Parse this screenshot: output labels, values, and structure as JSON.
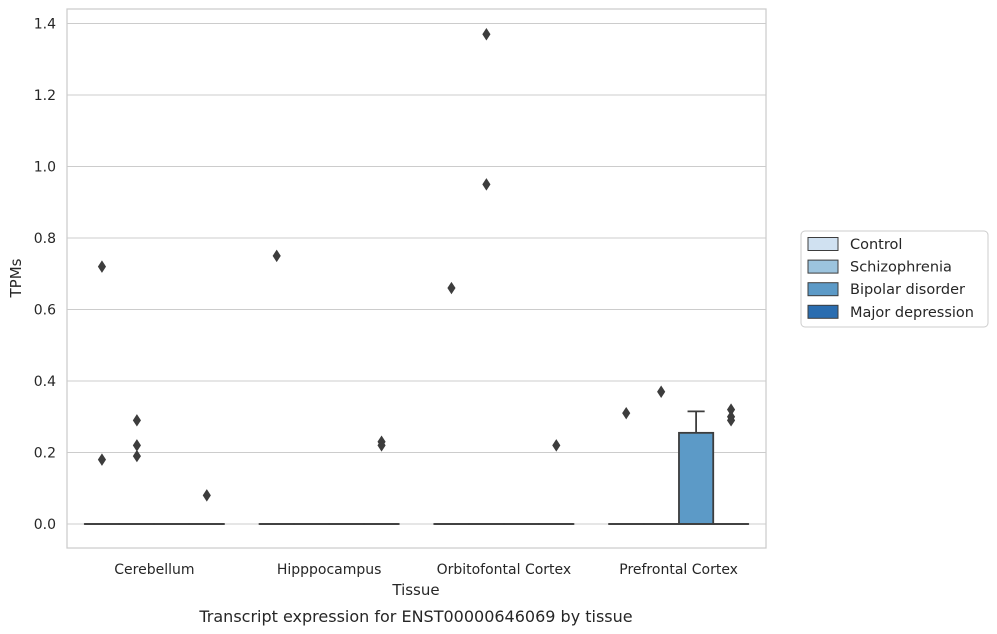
{
  "caption": "Transcript expression for ENST00000646069 by tissue",
  "colors": {
    "Control": "#d0e1f1",
    "Schizophrenia": "#9cc4de",
    "Bipolar disorder": "#5c9ac7",
    "Major depression": "#2a6db0",
    "grid": "#cccccc",
    "line": "#3d3d3d"
  },
  "chart_data": {
    "type": "box",
    "xlabel": "Tissue",
    "ylabel": "TPMs",
    "ylim": [
      -0.07,
      1.44
    ],
    "yticks": [
      0.0,
      0.2,
      0.4,
      0.6,
      0.8,
      1.0,
      1.2,
      1.4
    ],
    "ytick_labels": [
      "0.0",
      "0.2",
      "0.4",
      "0.6",
      "0.8",
      "1.0",
      "1.2",
      "1.4"
    ],
    "grid": "horizontal",
    "legend_position": "right",
    "categories": [
      "Cerebellum",
      "Hipppocampus",
      "Orbitofontal Cortex",
      "Prefrontal Cortex"
    ],
    "series": [
      {
        "name": "Control",
        "boxes": [
          {
            "q1": 0,
            "median": 0,
            "q3": 0,
            "whisker_low": 0,
            "whisker_high": 0,
            "outliers": [
              0.72,
              0.18
            ]
          },
          {
            "q1": 0,
            "median": 0,
            "q3": 0,
            "whisker_low": 0,
            "whisker_high": 0,
            "outliers": [
              0.75
            ]
          },
          {
            "q1": 0,
            "median": 0,
            "q3": 0,
            "whisker_low": 0,
            "whisker_high": 0,
            "outliers": [
              0.66
            ]
          },
          {
            "q1": 0,
            "median": 0,
            "q3": 0,
            "whisker_low": 0,
            "whisker_high": 0,
            "outliers": [
              0.31
            ]
          }
        ]
      },
      {
        "name": "Schizophrenia",
        "boxes": [
          {
            "q1": 0,
            "median": 0,
            "q3": 0,
            "whisker_low": 0,
            "whisker_high": 0,
            "outliers": [
              0.29,
              0.22,
              0.19
            ]
          },
          {
            "q1": 0,
            "median": 0,
            "q3": 0,
            "whisker_low": 0,
            "whisker_high": 0,
            "outliers": []
          },
          {
            "q1": 0,
            "median": 0,
            "q3": 0,
            "whisker_low": 0,
            "whisker_high": 0,
            "outliers": [
              1.37,
              0.95
            ]
          },
          {
            "q1": 0,
            "median": 0,
            "q3": 0,
            "whisker_low": 0,
            "whisker_high": 0,
            "outliers": [
              0.37
            ]
          }
        ]
      },
      {
        "name": "Bipolar disorder",
        "boxes": [
          {
            "q1": 0,
            "median": 0,
            "q3": 0,
            "whisker_low": 0,
            "whisker_high": 0,
            "outliers": []
          },
          {
            "q1": 0,
            "median": 0,
            "q3": 0,
            "whisker_low": 0,
            "whisker_high": 0,
            "outliers": []
          },
          {
            "q1": 0,
            "median": 0,
            "q3": 0,
            "whisker_low": 0,
            "whisker_high": 0,
            "outliers": []
          },
          {
            "q1": 0,
            "median": 0,
            "q3": 0.255,
            "whisker_low": 0,
            "whisker_high": 0.315,
            "outliers": []
          }
        ]
      },
      {
        "name": "Major depression",
        "boxes": [
          {
            "q1": 0,
            "median": 0,
            "q3": 0,
            "whisker_low": 0,
            "whisker_high": 0,
            "outliers": [
              0.08
            ]
          },
          {
            "q1": 0,
            "median": 0,
            "q3": 0,
            "whisker_low": 0,
            "whisker_high": 0,
            "outliers": [
              0.23,
              0.22
            ]
          },
          {
            "q1": 0,
            "median": 0,
            "q3": 0,
            "whisker_low": 0,
            "whisker_high": 0,
            "outliers": [
              0.22
            ]
          },
          {
            "q1": 0,
            "median": 0,
            "q3": 0,
            "whisker_low": 0,
            "whisker_high": 0,
            "outliers": [
              0.32,
              0.3,
              0.29
            ]
          }
        ]
      }
    ]
  }
}
